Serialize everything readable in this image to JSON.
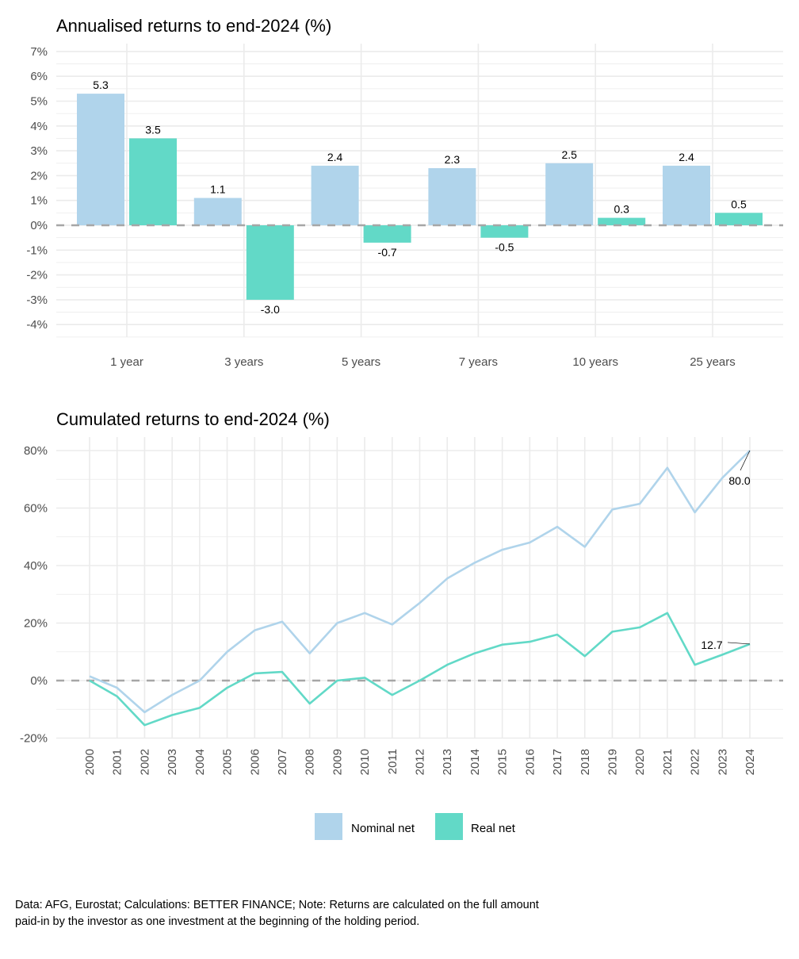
{
  "chart_data": [
    {
      "type": "bar",
      "title": "Annualised returns to end-2024 (%)",
      "xlabel": "",
      "ylabel": "",
      "categories": [
        "1 year",
        "3 years",
        "5 years",
        "7 years",
        "10 years",
        "25 years"
      ],
      "series": [
        {
          "name": "Nominal net",
          "color": "#b0d4eb",
          "values": [
            5.3,
            1.1,
            2.4,
            2.3,
            2.5,
            2.4
          ]
        },
        {
          "name": "Real net",
          "color": "#62d9c7",
          "values": [
            3.5,
            -3.0,
            -0.7,
            -0.5,
            0.3,
            0.5
          ]
        }
      ],
      "data_labels": [
        [
          "5.3",
          "1.1",
          "2.4",
          "2.3",
          "2.5",
          "2.4"
        ],
        [
          "3.5",
          "-3.0",
          "-0.7",
          "-0.5",
          "0.3",
          "0.5"
        ]
      ],
      "ylim": [
        -4.5,
        7.3
      ],
      "yticks": [
        7,
        6,
        5,
        4,
        3,
        2,
        1,
        0,
        -1,
        -2,
        -3,
        -4
      ],
      "ytick_labels": [
        "7%",
        "6%",
        "5%",
        "4%",
        "3%",
        "2%",
        "1%",
        "0%",
        "-1%",
        "-2%",
        "-3%",
        "-4%"
      ],
      "reference_line": {
        "value": 0,
        "style": "dashed",
        "color": "#a6a6a6"
      },
      "grid": true
    },
    {
      "type": "line",
      "title": "Cumulated returns to end-2024 (%)",
      "xlabel": "",
      "ylabel": "",
      "x": [
        "2000",
        "2001",
        "2002",
        "2003",
        "2004",
        "2005",
        "2006",
        "2007",
        "2008",
        "2009",
        "2010",
        "2011",
        "2012",
        "2013",
        "2014",
        "2015",
        "2016",
        "2017",
        "2018",
        "2019",
        "2020",
        "2021",
        "2022",
        "2023",
        "2024"
      ],
      "series": [
        {
          "name": "Nominal net",
          "color": "#b0d4eb",
          "values": [
            1.5,
            -2.5,
            -11,
            -5,
            0,
            10,
            17.5,
            20.5,
            9.5,
            20,
            23.5,
            19.5,
            27,
            35.5,
            41,
            45.5,
            48,
            53.5,
            46.5,
            59.5,
            61.5,
            74,
            58.5,
            70.5,
            80.0
          ]
        },
        {
          "name": "Real net",
          "color": "#62d9c7",
          "values": [
            0,
            -5.5,
            -15.5,
            -12,
            -9.5,
            -2.5,
            2.5,
            3,
            -8,
            0,
            1,
            -5,
            0,
            5.5,
            9.5,
            12.5,
            13.5,
            16,
            8.5,
            17,
            18.5,
            23.5,
            5.5,
            9,
            12.7
          ]
        }
      ],
      "annotations": [
        {
          "series": "Nominal net",
          "x": "2024",
          "text": "80.0"
        },
        {
          "series": "Real net",
          "x": "2024",
          "text": "12.7"
        }
      ],
      "ylim": [
        -20,
        83
      ],
      "yticks": [
        80,
        60,
        40,
        20,
        0,
        -20
      ],
      "ytick_labels": [
        "80%",
        "60%",
        "40%",
        "20%",
        "0%",
        "-20%"
      ],
      "reference_line": {
        "value": 0,
        "style": "dashed",
        "color": "#a6a6a6"
      },
      "grid": true
    }
  ],
  "legend": {
    "placement": "bottom-center",
    "items": [
      {
        "label": "Nominal net",
        "color": "#b0d4eb"
      },
      {
        "label": "Real net",
        "color": "#62d9c7"
      }
    ]
  },
  "caption": {
    "line1": "Data: AFG, Eurostat; Calculations: BETTER FINANCE; Note: Returns are calculated on the full amount",
    "line2": "paid-in by the investor as one investment at the beginning of the holding period."
  }
}
